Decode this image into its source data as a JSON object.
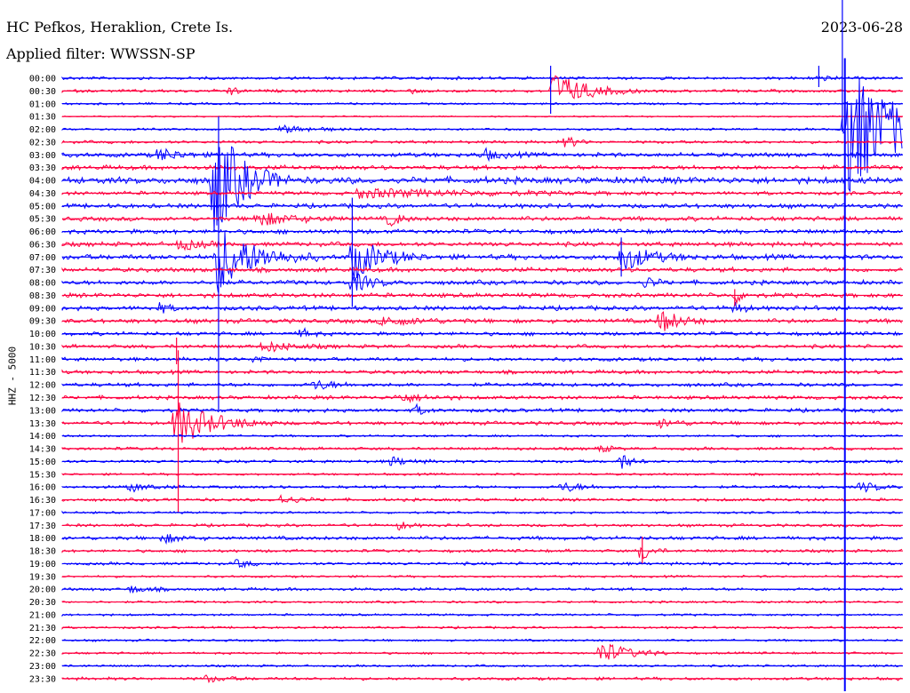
{
  "header": {
    "station": "HC Pefkos, Heraklion, Crete Is.",
    "filter": "Applied filter: WWSSN-SP",
    "date": "2023-06-28",
    "channel": "HHZ - 5000"
  },
  "chart_data": {
    "type": "seismogram",
    "trace_colors": [
      "#0000ff",
      "#ff0040"
    ],
    "rows": [
      "00:00",
      "00:30",
      "01:00",
      "01:30",
      "02:00",
      "02:30",
      "03:00",
      "03:30",
      "04:00",
      "04:30",
      "05:00",
      "05:30",
      "06:00",
      "06:30",
      "07:00",
      "07:30",
      "08:00",
      "08:30",
      "09:00",
      "09:30",
      "10:00",
      "10:30",
      "11:00",
      "11:30",
      "12:00",
      "12:30",
      "13:00",
      "13:30",
      "14:00",
      "14:30",
      "15:00",
      "15:30",
      "16:00",
      "16:30",
      "17:00",
      "17:30",
      "18:00",
      "18:30",
      "19:00",
      "19:30",
      "20:00",
      "20:30",
      "21:00",
      "21:30",
      "22:00",
      "22:30",
      "23:00",
      "23:30"
    ],
    "row_noise": [
      2,
      2,
      1.5,
      1,
      1.5,
      2,
      3,
      3,
      4.5,
      2.5,
      3,
      3,
      3,
      3,
      3.5,
      3,
      3,
      3,
      3,
      3,
      2.5,
      2.5,
      2.5,
      2.5,
      2.5,
      2.5,
      2.5,
      2.5,
      1.5,
      2,
      2,
      1.5,
      2,
      2,
      1.5,
      2,
      2.5,
      2,
      2,
      1.5,
      2,
      1.5,
      1.5,
      1.5,
      1.5,
      1.5,
      1.5,
      2
    ],
    "events": [
      {
        "row": 0,
        "x": 0.9,
        "amp": 4,
        "dur": 0.01
      },
      {
        "row": 1,
        "x": 0.2,
        "amp": 6,
        "dur": 0.008
      },
      {
        "row": 1,
        "x": 0.583,
        "amp": 22,
        "dur": 0.035
      },
      {
        "row": 1,
        "x": 0.41,
        "amp": 4,
        "dur": 0.008
      },
      {
        "row": 4,
        "x": 0.26,
        "amp": 4,
        "dur": 0.04
      },
      {
        "row": 5,
        "x": 0.6,
        "amp": 8,
        "dur": 0.01
      },
      {
        "row": 4,
        "x": 0.93,
        "amp": 80,
        "dur": 0.06
      },
      {
        "row": 6,
        "x": 0.115,
        "amp": 8,
        "dur": 0.02
      },
      {
        "row": 6,
        "x": 0.5,
        "amp": 6,
        "dur": 0.02
      },
      {
        "row": 8,
        "x": 0.18,
        "amp": 70,
        "dur": 0.03
      },
      {
        "row": 9,
        "x": 0.35,
        "amp": 5,
        "dur": 0.12
      },
      {
        "row": 11,
        "x": 0.23,
        "amp": 8,
        "dur": 0.04
      },
      {
        "row": 11,
        "x": 0.39,
        "amp": 10,
        "dur": 0.01
      },
      {
        "row": 13,
        "x": 0.14,
        "amp": 7,
        "dur": 0.02
      },
      {
        "row": 14,
        "x": 0.183,
        "amp": 40,
        "dur": 0.04
      },
      {
        "row": 14,
        "x": 0.345,
        "amp": 26,
        "dur": 0.03
      },
      {
        "row": 14,
        "x": 0.665,
        "amp": 16,
        "dur": 0.03
      },
      {
        "row": 16,
        "x": 0.345,
        "amp": 12,
        "dur": 0.02
      },
      {
        "row": 16,
        "x": 0.695,
        "amp": 8,
        "dur": 0.01
      },
      {
        "row": 17,
        "x": 0.8,
        "amp": 8,
        "dur": 0.01
      },
      {
        "row": 18,
        "x": 0.115,
        "amp": 6,
        "dur": 0.01
      },
      {
        "row": 18,
        "x": 0.8,
        "amp": 7,
        "dur": 0.01
      },
      {
        "row": 19,
        "x": 0.712,
        "amp": 14,
        "dur": 0.02
      },
      {
        "row": 19,
        "x": 0.38,
        "amp": 5,
        "dur": 0.04
      },
      {
        "row": 20,
        "x": 0.285,
        "amp": 6,
        "dur": 0.01
      },
      {
        "row": 21,
        "x": 0.24,
        "amp": 6,
        "dur": 0.03
      },
      {
        "row": 22,
        "x": 0.23,
        "amp": 5,
        "dur": 0.01
      },
      {
        "row": 24,
        "x": 0.3,
        "amp": 6,
        "dur": 0.02
      },
      {
        "row": 25,
        "x": 0.4,
        "amp": 5,
        "dur": 0.03
      },
      {
        "row": 26,
        "x": 0.42,
        "amp": 6,
        "dur": 0.01
      },
      {
        "row": 27,
        "x": 0.135,
        "amp": 26,
        "dur": 0.04
      },
      {
        "row": 27,
        "x": 0.71,
        "amp": 5,
        "dur": 0.02
      },
      {
        "row": 29,
        "x": 0.64,
        "amp": 5,
        "dur": 0.01
      },
      {
        "row": 30,
        "x": 0.665,
        "amp": 10,
        "dur": 0.01
      },
      {
        "row": 30,
        "x": 0.39,
        "amp": 5,
        "dur": 0.02
      },
      {
        "row": 32,
        "x": 0.08,
        "amp": 5,
        "dur": 0.02
      },
      {
        "row": 32,
        "x": 0.595,
        "amp": 6,
        "dur": 0.02
      },
      {
        "row": 32,
        "x": 0.95,
        "amp": 6,
        "dur": 0.02
      },
      {
        "row": 33,
        "x": 0.26,
        "amp": 5,
        "dur": 0.02
      },
      {
        "row": 35,
        "x": 0.4,
        "amp": 6,
        "dur": 0.01
      },
      {
        "row": 36,
        "x": 0.12,
        "amp": 5,
        "dur": 0.02
      },
      {
        "row": 37,
        "x": 0.69,
        "amp": 12,
        "dur": 0.01
      },
      {
        "row": 38,
        "x": 0.21,
        "amp": 6,
        "dur": 0.01
      },
      {
        "row": 40,
        "x": 0.08,
        "amp": 4,
        "dur": 0.02
      },
      {
        "row": 45,
        "x": 0.64,
        "amp": 14,
        "dur": 0.03
      },
      {
        "row": 47,
        "x": 0.17,
        "amp": 4,
        "dur": 0.02
      }
    ],
    "spikes": [
      {
        "row": 0,
        "x": 0.581,
        "up": 14,
        "down": 40
      },
      {
        "row": 0,
        "x": 0.9,
        "up": 14,
        "down": 10
      },
      {
        "row": 0,
        "x": 0.928,
        "up": 90,
        "down": 60
      },
      {
        "row": 4,
        "x": 0.931,
        "up": 80,
        "down": 700
      },
      {
        "row": 8,
        "x": 0.186,
        "up": 72,
        "down": 258
      },
      {
        "row": 12,
        "x": 0.345,
        "up": 38,
        "down": 85
      },
      {
        "row": 14,
        "x": 0.665,
        "up": 22,
        "down": 22
      },
      {
        "row": 17,
        "x": 0.8,
        "up": 7,
        "down": 12
      },
      {
        "row": 21,
        "x": 0.136,
        "up": 10,
        "down": 20
      },
      {
        "row": 27,
        "x": 0.138,
        "up": 82,
        "down": 100
      },
      {
        "row": 37,
        "x": 0.69,
        "up": 16,
        "down": 14
      }
    ]
  }
}
